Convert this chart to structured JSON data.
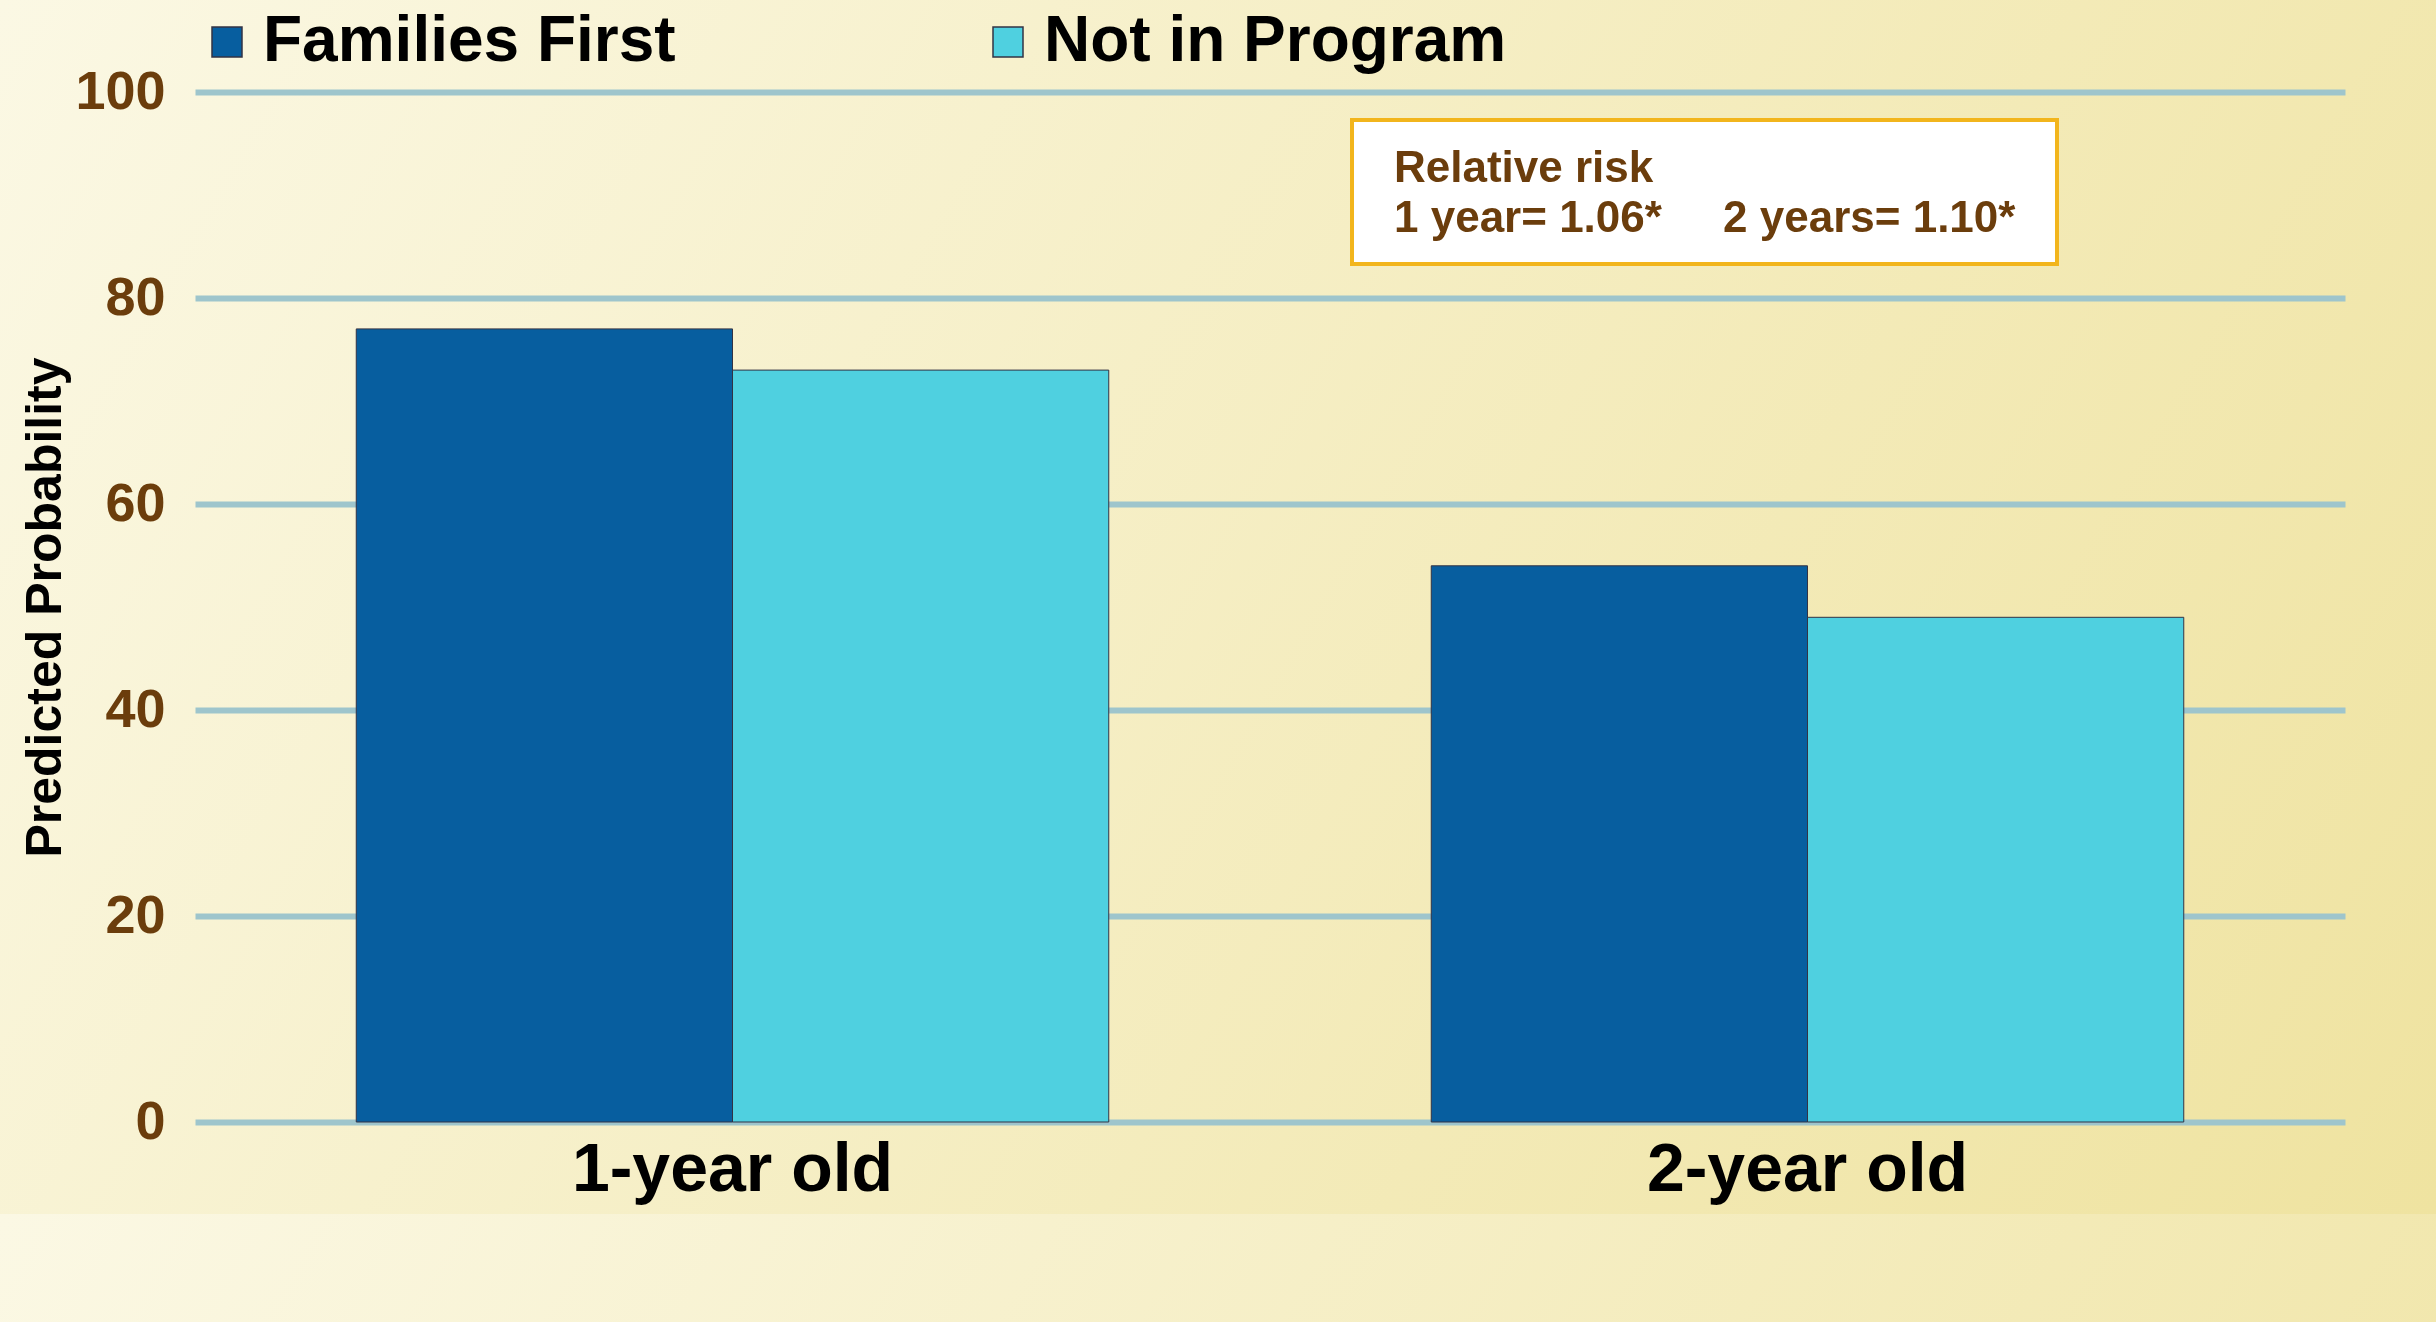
{
  "chart_data": {
    "type": "bar",
    "ylabel": "Predicted Probability",
    "categories": [
      "1-year old",
      "2-year old"
    ],
    "series": [
      {
        "name": "Families First",
        "color": "#075e9f",
        "values": [
          77,
          54
        ]
      },
      {
        "name": "Not in Program",
        "color": "#4fd0e0",
        "values": [
          73,
          49
        ]
      }
    ],
    "ylim": [
      0,
      100
    ],
    "yticks": [
      0,
      20,
      40,
      60,
      80,
      100
    ],
    "grid": "y",
    "legend": "top",
    "annotations": [
      "Relative risk",
      "1 year= 1.06*     2 years= 1.10*"
    ]
  }
}
